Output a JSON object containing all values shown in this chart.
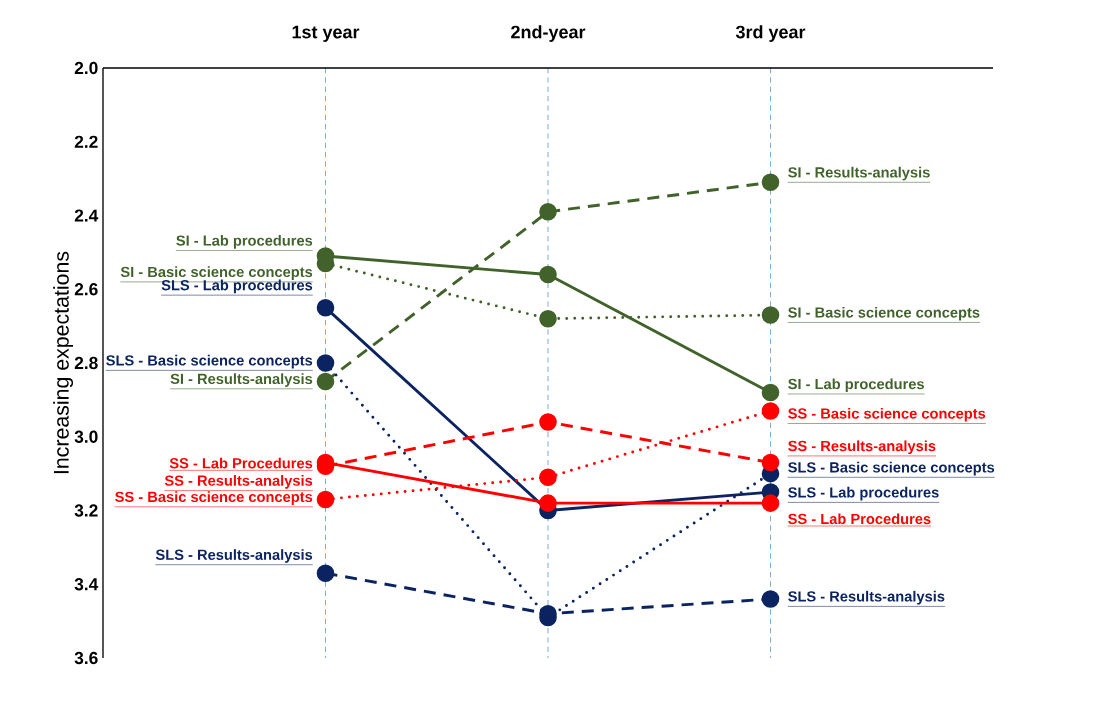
{
  "chart_data": {
    "type": "line",
    "ylabel": "Increasing expectations",
    "categories": [
      "1st year",
      "2nd-year",
      "3rd year"
    ],
    "ylim": [
      3.6,
      2.0
    ],
    "yticks": [
      {
        "value": 2.0,
        "label": "2.0"
      },
      {
        "value": 2.2,
        "label": "2.2"
      },
      {
        "value": 2.4,
        "label": "2.4"
      },
      {
        "value": 2.6,
        "label": "2.6"
      },
      {
        "value": 2.8,
        "label": "2.8"
      },
      {
        "value": 3.0,
        "label": "3.0"
      },
      {
        "value": 3.2,
        "label": "3.2"
      },
      {
        "value": 3.4,
        "label": "3.4"
      },
      {
        "value": 3.6,
        "label": "3.6"
      }
    ],
    "grid": "x",
    "marker": "circle",
    "series": [
      {
        "name": "SI - Lab procedures",
        "color": "#41632b",
        "line_style": "solid",
        "values": [
          2.51,
          2.56,
          2.88
        ]
      },
      {
        "name": "SI - Basic science concepts",
        "color": "#41632b",
        "line_style": "dotted",
        "values": [
          2.53,
          2.68,
          2.67
        ]
      },
      {
        "name": "SI - Results-analysis",
        "color": "#41632b",
        "line_style": "dashed",
        "values": [
          2.85,
          2.39,
          2.31
        ]
      },
      {
        "name": "SLS - Lab procedures",
        "color": "#0b2461",
        "line_style": "solid",
        "values": [
          2.65,
          3.2,
          3.15
        ]
      },
      {
        "name": "SLS - Basic science concepts",
        "color": "#0b2461",
        "line_style": "dotted",
        "values": [
          2.8,
          3.49,
          3.1
        ]
      },
      {
        "name": "SLS - Results-analysis",
        "color": "#0b2461",
        "line_style": "dashed",
        "values": [
          3.37,
          3.48,
          3.44
        ]
      },
      {
        "name": "SS - Lab Procedures",
        "color": "#ff0000",
        "line_style": "solid",
        "values": [
          3.07,
          3.18,
          3.18
        ]
      },
      {
        "name": "SS - Results-analysis",
        "color": "#ff0000",
        "line_style": "dashed",
        "values": [
          3.08,
          2.96,
          3.07
        ]
      },
      {
        "name": "SS - Basic science concepts",
        "color": "#ff0000",
        "line_style": "dotted",
        "values": [
          3.17,
          3.11,
          2.93
        ]
      }
    ]
  }
}
